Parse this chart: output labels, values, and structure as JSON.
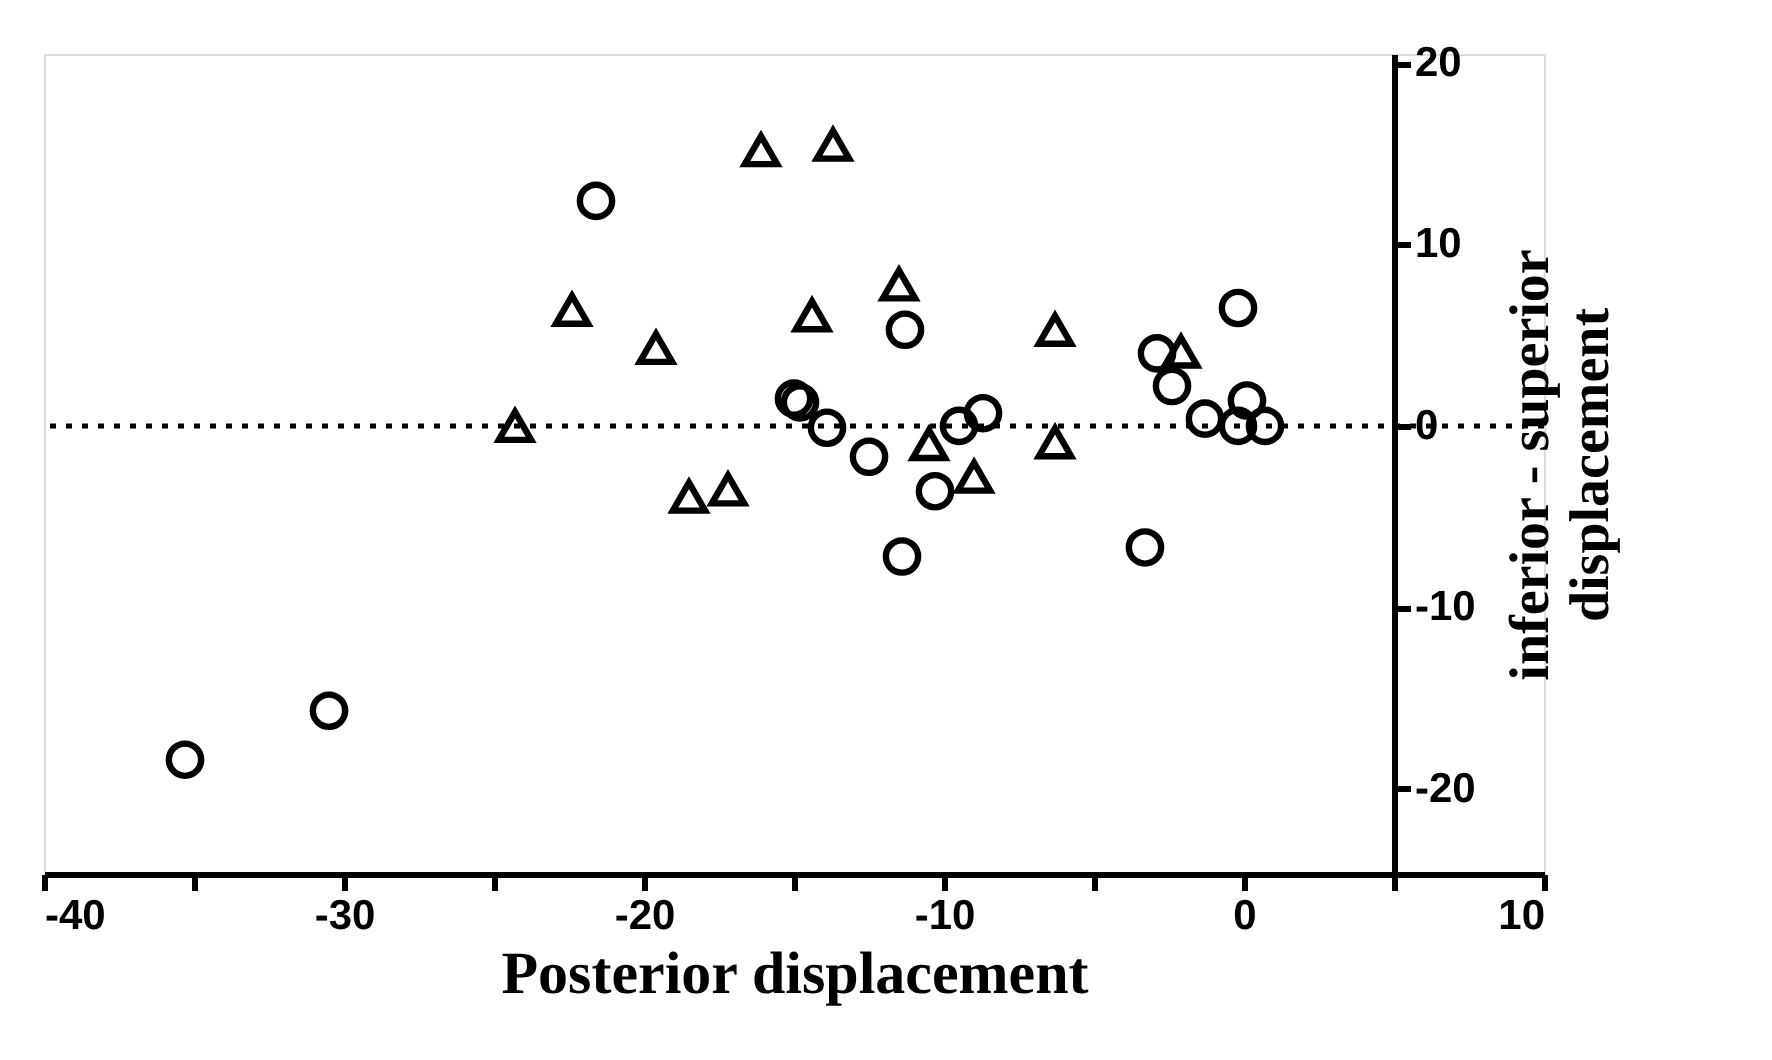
{
  "chart_data": {
    "type": "scatter",
    "xlabel": "Posterior displacement",
    "ylabel": "inferior - superior\ndisplacement",
    "xlim": [
      -40,
      10
    ],
    "ylim": [
      -24.7,
      20.5
    ],
    "xticks": [
      -40,
      {
        "value": -35,
        "label": null
      },
      -30,
      {
        "value": -25,
        "label": null
      },
      -20,
      {
        "value": -15,
        "label": null
      },
      -10,
      {
        "value": -5,
        "label": null
      },
      0,
      {
        "value": 5,
        "label": null
      },
      10
    ],
    "yticks": [
      -20,
      -10,
      0,
      10,
      20
    ],
    "grid": false,
    "legend": false,
    "ref_lines": [
      {
        "axis": "y",
        "value": 0,
        "line_style": "dotted",
        "color": "#000000"
      }
    ],
    "series": [
      {
        "color": "#000000",
        "marker": "circle",
        "x": [
          -35.3,
          -30.5,
          -21.6,
          -15.0,
          -14.8,
          -13.9,
          -12.5,
          -11.4,
          -11.3,
          -10.3,
          -9.5,
          -8.7,
          -3.3,
          -2.4,
          -2.9,
          -0.2,
          -1.3,
          0.1,
          -0.2,
          0.7
        ],
        "values": [
          -18.4,
          -15.7,
          12.4,
          1.5,
          1.3,
          -0.1,
          -1.7,
          -7.2,
          5.3,
          -3.6,
          0,
          0.7,
          -6.7,
          2.2,
          4.0,
          6.5,
          0.4,
          1.4,
          0,
          0
        ]
      },
      {
        "color": "#000000",
        "marker": "triangle",
        "x": [
          -24.3,
          -22.4,
          -19.6,
          -18.5,
          -17.2,
          -16.1,
          -13.7,
          -14.4,
          -11.5,
          -10.5,
          -9.0,
          -6.3,
          -6.3,
          -2.1
        ],
        "values": [
          0,
          6.4,
          4.3,
          -3.9,
          -3.5,
          15.2,
          15.5,
          6.1,
          7.8,
          -1.0,
          -2.8,
          5.3,
          -0.9,
          4.1
        ]
      }
    ]
  }
}
